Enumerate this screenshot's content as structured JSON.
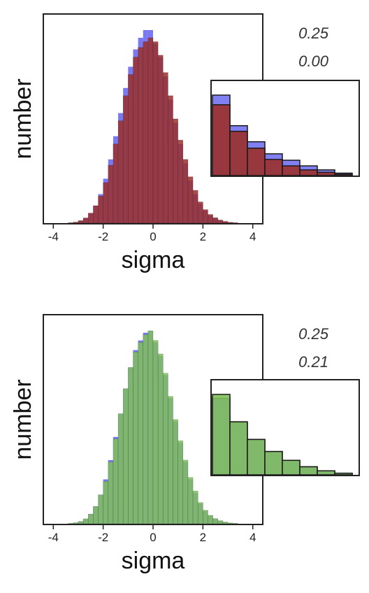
{
  "chart_data": [
    {
      "type": "bar",
      "xlabel": "sigma",
      "ylabel": "number",
      "xlim": [
        -4.4,
        4.4
      ],
      "xticks": [
        "-4",
        "-2",
        "0",
        "2",
        "4"
      ],
      "annotations": [
        "0.25",
        "0.00"
      ],
      "colors": {
        "series_a": "#6a6af0",
        "series_b": "#9b2f2a"
      },
      "bin_width": 0.2,
      "series": [
        {
          "bin_centers": [
            -3.3,
            -3.1,
            -2.9,
            -2.7,
            -2.5,
            -2.3,
            -2.1,
            -1.9,
            -1.7,
            -1.5,
            -1.3,
            -1.1,
            -0.9,
            -0.7,
            -0.5,
            -0.3,
            -0.1,
            0.1,
            0.3,
            0.5,
            0.7,
            0.9,
            1.1,
            1.3,
            1.5,
            1.7,
            1.9,
            2.1,
            2.3,
            2.5,
            2.7,
            2.9,
            3.1,
            3.3
          ],
          "values": [
            0.002,
            0.005,
            0.012,
            0.025,
            0.05,
            0.09,
            0.15,
            0.23,
            0.33,
            0.45,
            0.57,
            0.7,
            0.81,
            0.9,
            0.96,
            1.0,
            1.0,
            0.93,
            0.86,
            0.76,
            0.64,
            0.52,
            0.41,
            0.31,
            0.22,
            0.15,
            0.1,
            0.065,
            0.04,
            0.025,
            0.015,
            0.008,
            0.004,
            0.002
          ]
        },
        {
          "bin_centers": [
            -3.3,
            -3.1,
            -2.9,
            -2.7,
            -2.5,
            -2.3,
            -2.1,
            -1.9,
            -1.7,
            -1.5,
            -1.3,
            -1.1,
            -0.9,
            -0.7,
            -0.5,
            -0.3,
            -0.1,
            0.1,
            0.3,
            0.5,
            0.7,
            0.9,
            1.1,
            1.3,
            1.5,
            1.7,
            1.9,
            2.1,
            2.3,
            2.5,
            2.7,
            2.9,
            3.1,
            3.3
          ],
          "values": [
            0.002,
            0.005,
            0.013,
            0.027,
            0.052,
            0.09,
            0.14,
            0.21,
            0.3,
            0.41,
            0.53,
            0.66,
            0.77,
            0.86,
            0.91,
            0.94,
            0.96,
            0.94,
            0.87,
            0.78,
            0.66,
            0.54,
            0.43,
            0.33,
            0.24,
            0.17,
            0.11,
            0.07,
            0.045,
            0.028,
            0.016,
            0.009,
            0.004,
            0.002
          ]
        }
      ],
      "inset": {
        "grid": false,
        "bin_width": 1,
        "bin_starts": [
          0,
          1,
          2,
          3,
          4,
          5,
          6,
          7
        ],
        "series": [
          {
            "values": [
              1.0,
              0.62,
              0.42,
              0.27,
              0.19,
              0.12,
              0.07,
              0.03
            ]
          },
          {
            "values": [
              0.88,
              0.55,
              0.34,
              0.2,
              0.12,
              0.07,
              0.04,
              0.015
            ]
          }
        ]
      }
    },
    {
      "type": "bar",
      "xlabel": "sigma",
      "ylabel": "number",
      "xlim": [
        -4.4,
        4.4
      ],
      "xticks": [
        "-4",
        "-2",
        "0",
        "2",
        "4"
      ],
      "annotations": [
        "0.25",
        "0.21"
      ],
      "colors": {
        "series_a": "#6a6af0",
        "series_b": "#7fbf5a"
      },
      "bin_width": 0.2,
      "series": [
        {
          "bin_centers": [
            -3.3,
            -3.1,
            -2.9,
            -2.7,
            -2.5,
            -2.3,
            -2.1,
            -1.9,
            -1.7,
            -1.5,
            -1.3,
            -1.1,
            -0.9,
            -0.7,
            -0.5,
            -0.3,
            -0.1,
            0.1,
            0.3,
            0.5,
            0.7,
            0.9,
            1.1,
            1.3,
            1.5,
            1.7,
            1.9,
            2.1,
            2.3,
            2.5,
            2.7,
            2.9,
            3.1,
            3.3
          ],
          "values": [
            0.002,
            0.005,
            0.012,
            0.025,
            0.05,
            0.09,
            0.15,
            0.23,
            0.33,
            0.45,
            0.57,
            0.7,
            0.81,
            0.9,
            0.95,
            0.99,
            1.0,
            0.94,
            0.87,
            0.77,
            0.65,
            0.53,
            0.42,
            0.32,
            0.23,
            0.16,
            0.105,
            0.068,
            0.042,
            0.026,
            0.015,
            0.008,
            0.004,
            0.002
          ]
        },
        {
          "bin_centers": [
            -3.3,
            -3.1,
            -2.9,
            -2.7,
            -2.5,
            -2.3,
            -2.1,
            -1.9,
            -1.7,
            -1.5,
            -1.3,
            -1.1,
            -0.9,
            -0.7,
            -0.5,
            -0.3,
            -0.1,
            0.1,
            0.3,
            0.5,
            0.7,
            0.9,
            1.1,
            1.3,
            1.5,
            1.7,
            1.9,
            2.1,
            2.3,
            2.5,
            2.7,
            2.9,
            3.1,
            3.3
          ],
          "values": [
            0.002,
            0.005,
            0.012,
            0.026,
            0.05,
            0.09,
            0.15,
            0.22,
            0.32,
            0.44,
            0.57,
            0.7,
            0.81,
            0.89,
            0.94,
            0.98,
            1.0,
            0.95,
            0.88,
            0.78,
            0.66,
            0.54,
            0.43,
            0.33,
            0.24,
            0.17,
            0.11,
            0.07,
            0.044,
            0.027,
            0.016,
            0.009,
            0.004,
            0.002
          ]
        }
      ],
      "inset": {
        "grid": false,
        "bin_width": 1,
        "bin_starts": [
          0,
          1,
          2,
          3,
          4,
          5,
          6,
          7
        ],
        "series": [
          {
            "values": [
              0.95,
              0.65,
              0.44,
              0.29,
              0.18,
              0.1,
              0.05,
              0.02
            ]
          },
          {
            "values": [
              1.0,
              0.66,
              0.44,
              0.29,
              0.18,
              0.1,
              0.05,
              0.02
            ]
          }
        ]
      }
    }
  ]
}
